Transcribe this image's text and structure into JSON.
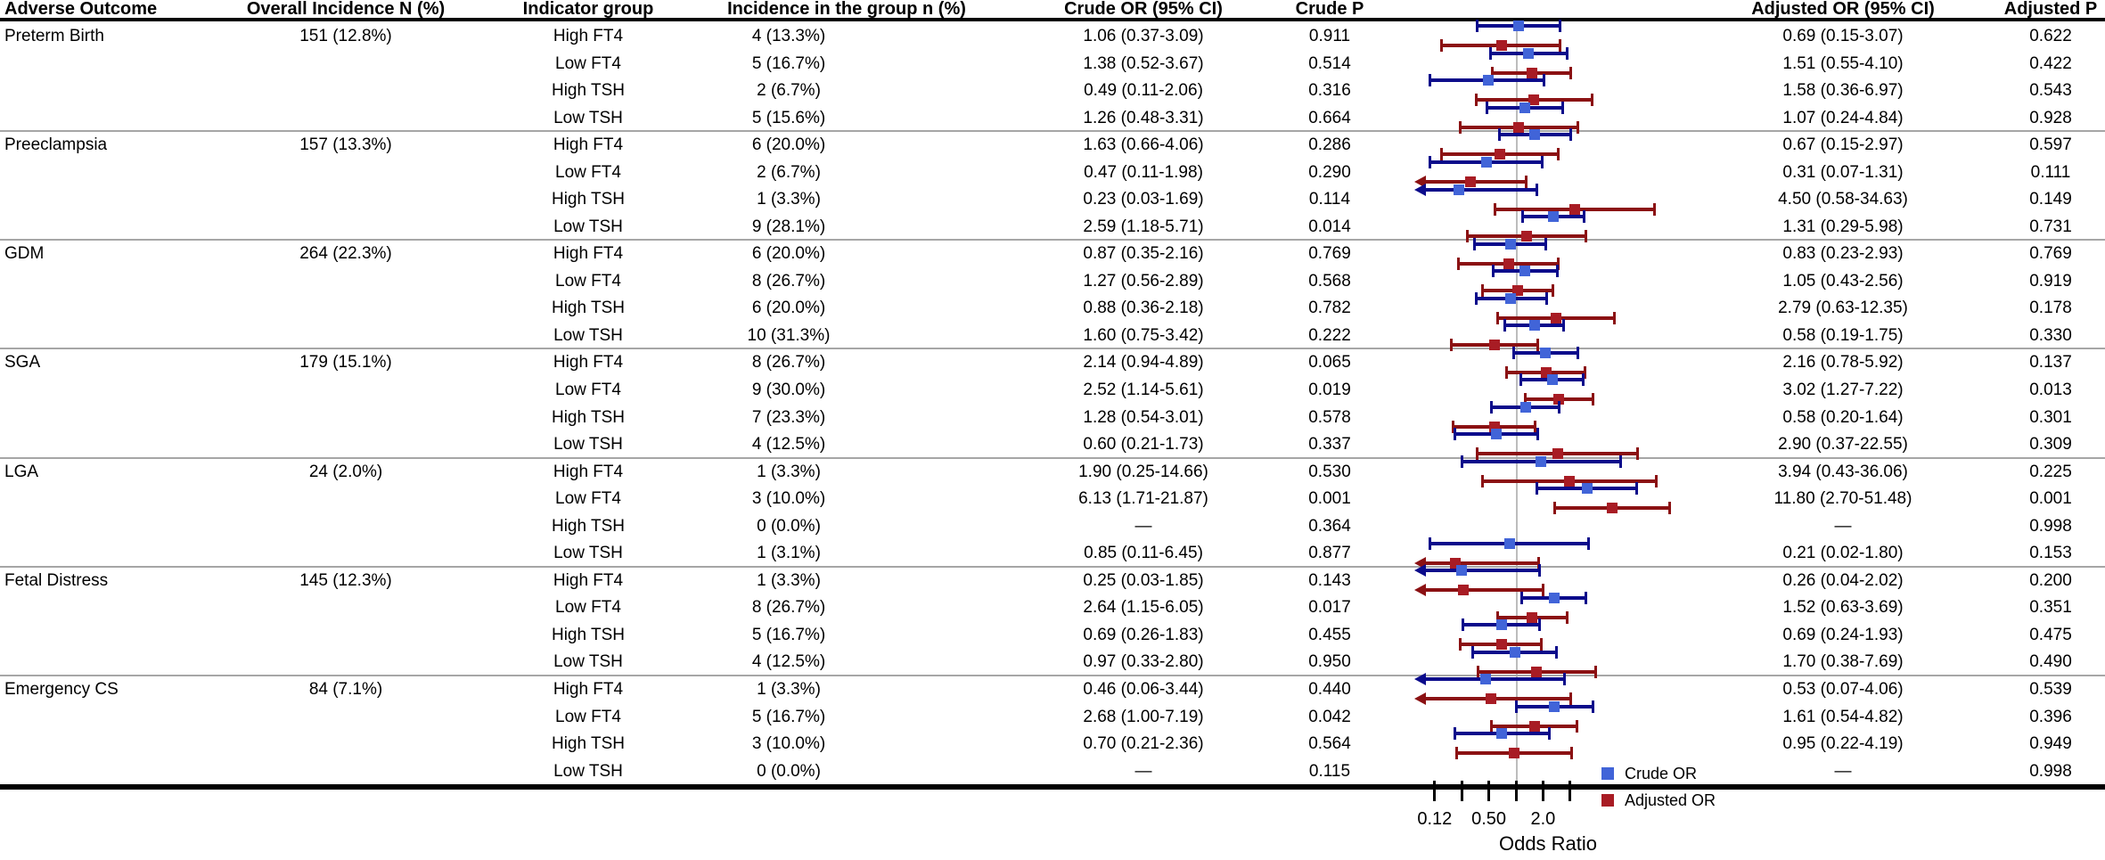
{
  "figure": {
    "columns": {
      "adverse_outcome": "Adverse Outcome",
      "overall_incidence": "Overall Incidence N (%)",
      "indicator_group": "Indicator group",
      "incidence_group": "Incidence in the group n (%)",
      "crude_or": "Crude OR (95% CI)",
      "crude_p": "Crude P",
      "adjusted_or": "Adjusted OR (95% CI)",
      "adjusted_p": "Adjusted P"
    },
    "legend": {
      "crude": {
        "label": "Crude OR",
        "color": "#4164d8"
      },
      "adjusted": {
        "label": "Adjusted OR",
        "color": "#a81c24"
      }
    },
    "axis": {
      "label": "Odds Ratio"
    }
  },
  "chart_data": {
    "type": "forest",
    "x_scale": "log",
    "xlabel": "Odds Ratio",
    "x_ticks": [
      0.12,
      0.25,
      0.5,
      1.0,
      2.0,
      4.0
    ],
    "labeled_ticks": [
      {
        "value": 0.12,
        "label": "0.12"
      },
      {
        "value": 0.5,
        "label": "0.50"
      },
      {
        "value": 2.0,
        "label": "2.0"
      }
    ],
    "reference_line": 1.0,
    "series": [
      "Crude OR",
      "Adjusted OR"
    ],
    "colors": {
      "crude_line": "#0b0b8b",
      "crude_marker": "#4164d8",
      "adjusted_line": "#8b1113",
      "adjusted_marker": "#a81c24"
    },
    "groups": [
      {
        "outcome": "Preterm Birth",
        "overall": "151 (12.8%)",
        "rows": [
          {
            "indicator": "High FT4",
            "incidence": "4 (13.3%)",
            "crude": {
              "est": 1.06,
              "lo": 0.37,
              "hi": 3.09,
              "label": "1.06 (0.37-3.09)",
              "p": "0.911"
            },
            "adjusted": {
              "est": 0.69,
              "lo": 0.15,
              "hi": 3.07,
              "label": "0.69 (0.15-3.07)",
              "p": "0.622"
            }
          },
          {
            "indicator": "Low FT4",
            "incidence": "5 (16.7%)",
            "crude": {
              "est": 1.38,
              "lo": 0.52,
              "hi": 3.67,
              "label": "1.38 (0.52-3.67)",
              "p": "0.514"
            },
            "adjusted": {
              "est": 1.51,
              "lo": 0.55,
              "hi": 4.1,
              "label": "1.51 (0.55-4.10)",
              "p": "0.422"
            }
          },
          {
            "indicator": "High TSH",
            "incidence": "2 (6.7%)",
            "crude": {
              "est": 0.49,
              "lo": 0.11,
              "hi": 2.06,
              "label": "0.49 (0.11-2.06)",
              "p": "0.316"
            },
            "adjusted": {
              "est": 1.58,
              "lo": 0.36,
              "hi": 6.97,
              "label": "1.58 (0.36-6.97)",
              "p": "0.543"
            }
          },
          {
            "indicator": "Low TSH",
            "incidence": "5 (15.6%)",
            "crude": {
              "est": 1.26,
              "lo": 0.48,
              "hi": 3.31,
              "label": "1.26 (0.48-3.31)",
              "p": "0.664"
            },
            "adjusted": {
              "est": 1.07,
              "lo": 0.24,
              "hi": 4.84,
              "label": "1.07 (0.24-4.84)",
              "p": "0.928"
            }
          }
        ]
      },
      {
        "outcome": "Preeclampsia",
        "overall": "157 (13.3%)",
        "rows": [
          {
            "indicator": "High FT4",
            "incidence": "6 (20.0%)",
            "crude": {
              "est": 1.63,
              "lo": 0.66,
              "hi": 4.06,
              "label": "1.63 (0.66-4.06)",
              "p": "0.286"
            },
            "adjusted": {
              "est": 0.67,
              "lo": 0.15,
              "hi": 2.97,
              "label": "0.67 (0.15-2.97)",
              "p": "0.597"
            }
          },
          {
            "indicator": "Low FT4",
            "incidence": "2 (6.7%)",
            "crude": {
              "est": 0.47,
              "lo": 0.11,
              "hi": 1.98,
              "label": "0.47 (0.11-1.98)",
              "p": "0.290"
            },
            "adjusted": {
              "est": 0.31,
              "lo": 0.07,
              "hi": 1.31,
              "label": "0.31 (0.07-1.31)",
              "p": "0.111"
            }
          },
          {
            "indicator": "High TSH",
            "incidence": "1 (3.3%)",
            "crude": {
              "est": 0.23,
              "lo": 0.03,
              "hi": 1.69,
              "label": "0.23 (0.03-1.69)",
              "p": "0.114"
            },
            "adjusted": {
              "est": 4.5,
              "lo": 0.58,
              "hi": 34.63,
              "label": "4.50 (0.58-34.63)",
              "p": "0.149"
            }
          },
          {
            "indicator": "Low TSH",
            "incidence": "9 (28.1%)",
            "crude": {
              "est": 2.59,
              "lo": 1.18,
              "hi": 5.71,
              "label": "2.59 (1.18-5.71)",
              "p": "0.014"
            },
            "adjusted": {
              "est": 1.31,
              "lo": 0.29,
              "hi": 5.98,
              "label": "1.31 (0.29-5.98)",
              "p": "0.731"
            }
          }
        ]
      },
      {
        "outcome": "GDM",
        "overall": "264 (22.3%)",
        "rows": [
          {
            "indicator": "High FT4",
            "incidence": "6 (20.0%)",
            "crude": {
              "est": 0.87,
              "lo": 0.35,
              "hi": 2.16,
              "label": "0.87 (0.35-2.16)",
              "p": "0.769"
            },
            "adjusted": {
              "est": 0.83,
              "lo": 0.23,
              "hi": 2.93,
              "label": "0.83 (0.23-2.93)",
              "p": "0.769"
            }
          },
          {
            "indicator": "Low FT4",
            "incidence": "8 (26.7%)",
            "crude": {
              "est": 1.27,
              "lo": 0.56,
              "hi": 2.89,
              "label": "1.27 (0.56-2.89)",
              "p": "0.568"
            },
            "adjusted": {
              "est": 1.05,
              "lo": 0.43,
              "hi": 2.56,
              "label": "1.05 (0.43-2.56)",
              "p": "0.919"
            }
          },
          {
            "indicator": "High TSH",
            "incidence": "6 (20.0%)",
            "crude": {
              "est": 0.88,
              "lo": 0.36,
              "hi": 2.18,
              "label": "0.88 (0.36-2.18)",
              "p": "0.782"
            },
            "adjusted": {
              "est": 2.79,
              "lo": 0.63,
              "hi": 12.35,
              "label": "2.79 (0.63-12.35)",
              "p": "0.178"
            }
          },
          {
            "indicator": "Low TSH",
            "incidence": "10 (31.3%)",
            "crude": {
              "est": 1.6,
              "lo": 0.75,
              "hi": 3.42,
              "label": "1.60 (0.75-3.42)",
              "p": "0.222"
            },
            "adjusted": {
              "est": 0.58,
              "lo": 0.19,
              "hi": 1.75,
              "label": "0.58 (0.19-1.75)",
              "p": "0.330"
            }
          }
        ]
      },
      {
        "outcome": "SGA",
        "overall": "179 (15.1%)",
        "rows": [
          {
            "indicator": "High FT4",
            "incidence": "8 (26.7%)",
            "crude": {
              "est": 2.14,
              "lo": 0.94,
              "hi": 4.89,
              "label": "2.14 (0.94-4.89)",
              "p": "0.065"
            },
            "adjusted": {
              "est": 2.16,
              "lo": 0.78,
              "hi": 5.92,
              "label": "2.16 (0.78-5.92)",
              "p": "0.137"
            }
          },
          {
            "indicator": "Low FT4",
            "incidence": "9 (30.0%)",
            "crude": {
              "est": 2.52,
              "lo": 1.14,
              "hi": 5.61,
              "label": "2.52 (1.14-5.61)",
              "p": "0.019"
            },
            "adjusted": {
              "est": 3.02,
              "lo": 1.27,
              "hi": 7.22,
              "label": "3.02 (1.27-7.22)",
              "p": "0.013"
            }
          },
          {
            "indicator": "High TSH",
            "incidence": "7 (23.3%)",
            "crude": {
              "est": 1.28,
              "lo": 0.54,
              "hi": 3.01,
              "label": "1.28 (0.54-3.01)",
              "p": "0.578"
            },
            "adjusted": {
              "est": 0.58,
              "lo": 0.2,
              "hi": 1.64,
              "label": "0.58 (0.20-1.64)",
              "p": "0.301"
            }
          },
          {
            "indicator": "Low TSH",
            "incidence": "4 (12.5%)",
            "crude": {
              "est": 0.6,
              "lo": 0.21,
              "hi": 1.73,
              "label": "0.60 (0.21-1.73)",
              "p": "0.337"
            },
            "adjusted": {
              "est": 2.9,
              "lo": 0.37,
              "hi": 22.55,
              "label": "2.90 (0.37-22.55)",
              "p": "0.309"
            }
          }
        ]
      },
      {
        "outcome": "LGA",
        "overall": "24 (2.0%)",
        "rows": [
          {
            "indicator": "High FT4",
            "incidence": "1 (3.3%)",
            "crude": {
              "est": 1.9,
              "lo": 0.25,
              "hi": 14.66,
              "label": "1.90 (0.25-14.66)",
              "p": "0.530"
            },
            "adjusted": {
              "est": 3.94,
              "lo": 0.43,
              "hi": 36.06,
              "label": "3.94 (0.43-36.06)",
              "p": "0.225"
            }
          },
          {
            "indicator": "Low FT4",
            "incidence": "3 (10.0%)",
            "crude": {
              "est": 6.13,
              "lo": 1.71,
              "hi": 21.87,
              "label": "6.13 (1.71-21.87)",
              "p": "0.001"
            },
            "adjusted": {
              "est": 11.8,
              "lo": 2.7,
              "hi": 51.48,
              "label": "11.80 (2.70-51.48)",
              "p": "0.001"
            }
          },
          {
            "indicator": "High TSH",
            "incidence": "0 (0.0%)",
            "crude": {
              "est": null,
              "lo": null,
              "hi": null,
              "label": "—",
              "p": "0.364"
            },
            "adjusted": {
              "est": null,
              "lo": null,
              "hi": null,
              "label": "—",
              "p": "0.998"
            }
          },
          {
            "indicator": "Low TSH",
            "incidence": "1 (3.1%)",
            "crude": {
              "est": 0.85,
              "lo": 0.11,
              "hi": 6.45,
              "label": "0.85 (0.11-6.45)",
              "p": "0.877"
            },
            "adjusted": {
              "est": 0.21,
              "lo": 0.02,
              "hi": 1.8,
              "label": "0.21 (0.02-1.80)",
              "p": "0.153"
            }
          }
        ]
      },
      {
        "outcome": "Fetal Distress",
        "overall": "145 (12.3%)",
        "rows": [
          {
            "indicator": "High FT4",
            "incidence": "1 (3.3%)",
            "crude": {
              "est": 0.25,
              "lo": 0.03,
              "hi": 1.85,
              "label": "0.25 (0.03-1.85)",
              "p": "0.143"
            },
            "adjusted": {
              "est": 0.26,
              "lo": 0.04,
              "hi": 2.02,
              "label": "0.26 (0.04-2.02)",
              "p": "0.200"
            }
          },
          {
            "indicator": "Low FT4",
            "incidence": "8 (26.7%)",
            "crude": {
              "est": 2.64,
              "lo": 1.15,
              "hi": 6.05,
              "label": "2.64 (1.15-6.05)",
              "p": "0.017"
            },
            "adjusted": {
              "est": 1.52,
              "lo": 0.63,
              "hi": 3.69,
              "label": "1.52 (0.63-3.69)",
              "p": "0.351"
            }
          },
          {
            "indicator": "High TSH",
            "incidence": "5 (16.7%)",
            "crude": {
              "est": 0.69,
              "lo": 0.26,
              "hi": 1.83,
              "label": "0.69 (0.26-1.83)",
              "p": "0.455"
            },
            "adjusted": {
              "est": 0.69,
              "lo": 0.24,
              "hi": 1.93,
              "label": "0.69 (0.24-1.93)",
              "p": "0.475"
            }
          },
          {
            "indicator": "Low TSH",
            "incidence": "4 (12.5%)",
            "crude": {
              "est": 0.97,
              "lo": 0.33,
              "hi": 2.8,
              "label": "0.97 (0.33-2.80)",
              "p": "0.950"
            },
            "adjusted": {
              "est": 1.7,
              "lo": 0.38,
              "hi": 7.69,
              "label": "1.70 (0.38-7.69)",
              "p": "0.490"
            }
          }
        ]
      },
      {
        "outcome": "Emergency CS",
        "overall": "84 (7.1%)",
        "rows": [
          {
            "indicator": "High FT4",
            "incidence": "1 (3.3%)",
            "crude": {
              "est": 0.46,
              "lo": 0.06,
              "hi": 3.44,
              "label": "0.46 (0.06-3.44)",
              "p": "0.440"
            },
            "adjusted": {
              "est": 0.53,
              "lo": 0.07,
              "hi": 4.06,
              "label": "0.53 (0.07-4.06)",
              "p": "0.539"
            }
          },
          {
            "indicator": "Low FT4",
            "incidence": "5 (16.7%)",
            "crude": {
              "est": 2.68,
              "lo": 1.0,
              "hi": 7.19,
              "label": "2.68 (1.00-7.19)",
              "p": "0.042"
            },
            "adjusted": {
              "est": 1.61,
              "lo": 0.54,
              "hi": 4.82,
              "label": "1.61 (0.54-4.82)",
              "p": "0.396"
            }
          },
          {
            "indicator": "High TSH",
            "incidence": "3 (10.0%)",
            "crude": {
              "est": 0.7,
              "lo": 0.21,
              "hi": 2.36,
              "label": "0.70 (0.21-2.36)",
              "p": "0.564"
            },
            "adjusted": {
              "est": 0.95,
              "lo": 0.22,
              "hi": 4.19,
              "label": "0.95 (0.22-4.19)",
              "p": "0.949"
            }
          },
          {
            "indicator": "Low TSH",
            "incidence": "0 (0.0%)",
            "crude": {
              "est": null,
              "lo": null,
              "hi": null,
              "label": "—",
              "p": "0.115"
            },
            "adjusted": {
              "est": null,
              "lo": null,
              "hi": null,
              "label": "—",
              "p": "0.998"
            }
          }
        ]
      }
    ]
  }
}
